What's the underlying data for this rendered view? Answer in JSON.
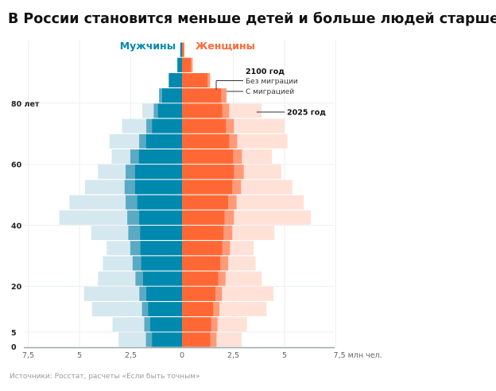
{
  "chart_data": {
    "type": "bar",
    "orientation": "horizontal-pyramid",
    "title": "В России становится меньше детей и больше людей старше 65 лет",
    "source": "Источники: Росстат, расчеты «Если быть точным»",
    "left_label": "Мужчины",
    "right_label": "Женщины",
    "x_unit": "млн чел.",
    "xlim": [
      -7.5,
      7.5
    ],
    "x_ticks": [
      {
        "value": -7.5,
        "label": "7,5"
      },
      {
        "value": -5,
        "label": "5"
      },
      {
        "value": -2.5,
        "label": "2,5"
      },
      {
        "value": 0,
        "label": "0"
      },
      {
        "value": 2.5,
        "label": "2,5"
      },
      {
        "value": 5,
        "label": "5"
      },
      {
        "value": 7.5,
        "label": "7,5 млн чел."
      }
    ],
    "y_ticks": [
      {
        "value": 80,
        "label": "80 лет"
      },
      {
        "value": 60,
        "label": "60"
      },
      {
        "value": 40,
        "label": "40"
      },
      {
        "value": 20,
        "label": "20"
      },
      {
        "value": 5,
        "label": "5"
      },
      {
        "value": 0,
        "label": "0"
      }
    ],
    "grid": true,
    "annotations": {
      "year_2100": "2100 год",
      "no_migration": "Без миграции",
      "with_migration": "С миграцией",
      "year_2025": "2025 год"
    },
    "colors": {
      "male_2025": "#d5e8ef",
      "male_2100_migration": "#5aaac4",
      "male_2100_no_migration": "#0089ae",
      "female_2025": "#ffe1d7",
      "female_2100_migration": "#ff9a78",
      "female_2100_no_migration": "#ff6835",
      "male_label": "#0089ae",
      "female_label": "#ff6835"
    },
    "age_groups": [
      "0-4",
      "5-9",
      "10-14",
      "15-19",
      "20-24",
      "25-29",
      "30-34",
      "35-39",
      "40-44",
      "45-49",
      "50-54",
      "55-59",
      "60-64",
      "65-69",
      "70-74",
      "75-79",
      "80-84",
      "85-89",
      "90-94",
      "95+"
    ],
    "series": {
      "male": {
        "2025": [
          3.09,
          3.39,
          4.39,
          4.78,
          4.1,
          3.86,
          3.67,
          4.43,
          5.98,
          5.49,
          4.73,
          4.1,
          3.43,
          3.54,
          2.93,
          1.94,
          1.12,
          0.66,
          0.23,
          0.09
        ],
        "2100_with_migration": [
          1.76,
          1.84,
          1.95,
          2.08,
          2.27,
          2.41,
          2.52,
          2.62,
          2.67,
          2.75,
          2.8,
          2.75,
          2.52,
          2.09,
          1.74,
          1.38,
          1.12,
          0.66,
          0.23,
          0.09
        ],
        "2100_no_migration": [
          1.46,
          1.55,
          1.65,
          1.74,
          1.9,
          1.99,
          2.03,
          2.04,
          2.09,
          2.18,
          2.29,
          2.29,
          2.1,
          1.75,
          1.46,
          1.17,
          0.97,
          0.62,
          0.22,
          0.08
        ]
      },
      "female": {
        "2025": [
          2.91,
          3.17,
          4.12,
          4.46,
          3.89,
          3.59,
          3.5,
          4.5,
          6.28,
          5.94,
          5.38,
          4.84,
          4.39,
          5.14,
          4.99,
          3.88,
          2.17,
          1.37,
          0.52,
          0.12
        ],
        "2100_with_migration": [
          1.68,
          1.73,
          1.82,
          1.95,
          2.12,
          2.25,
          2.34,
          2.45,
          2.53,
          2.66,
          2.88,
          3.01,
          2.92,
          2.69,
          2.53,
          2.3,
          2.17,
          1.37,
          0.52,
          0.12
        ],
        "2100_no_migration": [
          1.37,
          1.42,
          1.52,
          1.63,
          1.76,
          1.86,
          1.96,
          2.02,
          2.07,
          2.25,
          2.45,
          2.53,
          2.49,
          2.3,
          2.14,
          1.96,
          1.91,
          1.24,
          0.43,
          0.08
        ]
      }
    }
  }
}
